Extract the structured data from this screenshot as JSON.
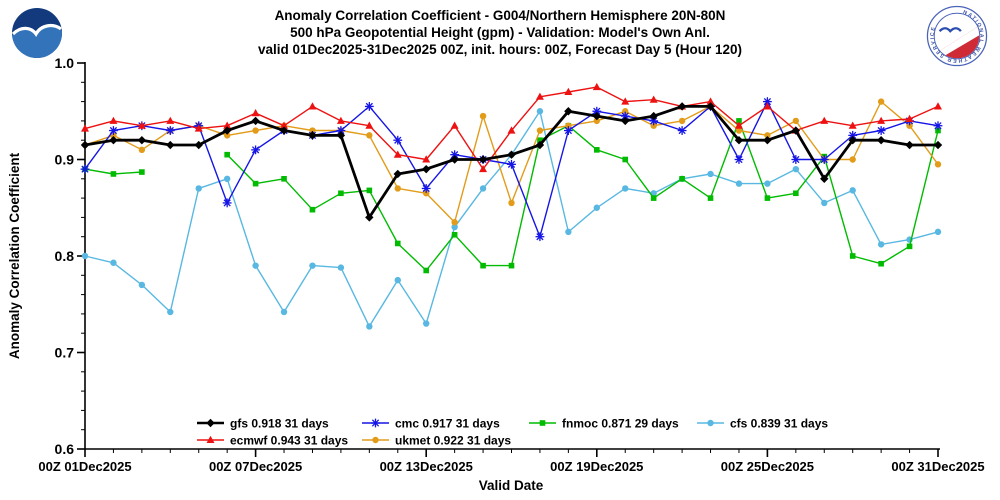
{
  "logos": {
    "nws_ring_text": "NATIONAL WEATHER SERVICE"
  },
  "chart_data": {
    "type": "line",
    "title_lines": [
      "Anomaly Correlation Coefficient - G004/Northern Hemisphere 20N-80N",
      "500 hPa Geopotential Height (gpm) - Validation: Model's Own Anl.",
      "valid 01Dec2025-31Dec2025 00Z, init. hours: 00Z, Forecast Day 5 (Hour 120)"
    ],
    "title": "Anomaly Correlation Coefficient - G004/Northern Hemisphere 20N-80N",
    "xlabel": "Valid Date",
    "ylabel": "Anomaly Correlation Coefficient",
    "ylim": [
      0.6,
      1.0
    ],
    "yticks": [
      1.0,
      0.9,
      0.8,
      0.7,
      0.6
    ],
    "grid": false,
    "x": [
      1,
      2,
      3,
      4,
      5,
      6,
      7,
      8,
      9,
      10,
      11,
      12,
      13,
      14,
      15,
      16,
      17,
      18,
      19,
      20,
      21,
      22,
      23,
      24,
      25,
      26,
      27,
      28,
      29,
      30,
      31
    ],
    "x_tick_positions": [
      1,
      7,
      13,
      19,
      25,
      31
    ],
    "x_tick_labels": [
      "00Z 01Dec2025",
      "00Z 07Dec2025",
      "00Z 13Dec2025",
      "00Z 19Dec2025",
      "00Z 25Dec2025",
      "00Z 31Dec2025"
    ],
    "legend_position": "inside-bottom",
    "legend_rows": [
      [
        "gfs",
        "cmc",
        "fnmoc",
        "cfs"
      ],
      [
        "ecmwf",
        "ukmet"
      ]
    ],
    "series": [
      {
        "name": "gfs",
        "legend": "gfs 0.918 31 days",
        "mean": 0.918,
        "n_days": 31,
        "color": "#000000",
        "marker": "diamond",
        "values": [
          0.915,
          0.92,
          0.92,
          0.915,
          0.915,
          0.93,
          0.94,
          0.93,
          0.925,
          0.925,
          0.84,
          0.885,
          0.89,
          0.9,
          0.9,
          0.905,
          0.915,
          0.95,
          0.945,
          0.94,
          0.945,
          0.955,
          0.955,
          0.92,
          0.92,
          0.93,
          0.88,
          0.92,
          0.92,
          0.915,
          0.915
        ]
      },
      {
        "name": "ecmwf",
        "legend": "ecmwf 0.943 31 days",
        "mean": 0.943,
        "n_days": 31,
        "color": "#ee1111",
        "marker": "triangle",
        "values": [
          0.932,
          0.94,
          0.935,
          0.94,
          0.932,
          0.935,
          0.948,
          0.935,
          0.955,
          0.94,
          0.935,
          0.905,
          0.9,
          0.935,
          0.89,
          0.93,
          0.965,
          0.97,
          0.975,
          0.96,
          0.962,
          0.955,
          0.96,
          0.935,
          0.955,
          0.93,
          0.94,
          0.935,
          0.94,
          0.942,
          0.955
        ]
      },
      {
        "name": "cmc",
        "legend": "cmc 0.917 31 days",
        "mean": 0.917,
        "n_days": 31,
        "color": "#1515e6",
        "marker": "asterisk",
        "values": [
          0.89,
          0.93,
          0.935,
          0.93,
          0.935,
          0.855,
          0.91,
          0.93,
          0.925,
          0.93,
          0.955,
          0.92,
          0.87,
          0.905,
          0.9,
          0.895,
          0.82,
          0.93,
          0.95,
          0.945,
          0.94,
          0.93,
          0.955,
          0.9,
          0.96,
          0.9,
          0.9,
          0.925,
          0.93,
          0.94,
          0.935
        ]
      },
      {
        "name": "ukmet",
        "legend": "ukmet 0.922 31 days",
        "mean": 0.922,
        "n_days": 31,
        "color": "#e29c1a",
        "marker": "circle",
        "values": [
          0.915,
          0.925,
          0.91,
          0.93,
          0.935,
          0.925,
          0.93,
          0.935,
          0.93,
          0.93,
          0.925,
          0.87,
          0.865,
          0.835,
          0.945,
          0.855,
          0.93,
          0.935,
          0.94,
          0.95,
          0.935,
          0.94,
          0.955,
          0.93,
          0.925,
          0.94,
          0.9,
          0.9,
          0.96,
          0.935,
          0.895
        ]
      },
      {
        "name": "fnmoc",
        "legend": "fnmoc 0.871 29 days",
        "mean": 0.871,
        "n_days": 29,
        "color": "#00bb00",
        "marker": "square",
        "values": [
          0.89,
          0.885,
          0.887,
          null,
          null,
          0.905,
          0.875,
          0.88,
          0.848,
          0.865,
          0.868,
          0.813,
          0.785,
          0.822,
          0.79,
          0.79,
          0.92,
          0.935,
          0.91,
          0.9,
          0.86,
          0.88,
          0.86,
          0.94,
          0.86,
          0.865,
          0.903,
          0.8,
          0.792,
          0.81,
          0.93
        ]
      },
      {
        "name": "cfs",
        "legend": "cfs 0.839 31 days",
        "mean": 0.839,
        "n_days": 31,
        "color": "#58b8e2",
        "marker": "circle",
        "values": [
          0.8,
          0.793,
          0.77,
          0.742,
          0.87,
          0.88,
          0.79,
          0.742,
          0.79,
          0.788,
          0.727,
          0.775,
          0.73,
          0.83,
          0.87,
          0.905,
          0.95,
          0.825,
          0.85,
          0.87,
          0.865,
          0.88,
          0.885,
          0.875,
          0.875,
          0.89,
          0.855,
          0.868,
          0.812,
          0.817,
          0.825
        ]
      }
    ]
  }
}
